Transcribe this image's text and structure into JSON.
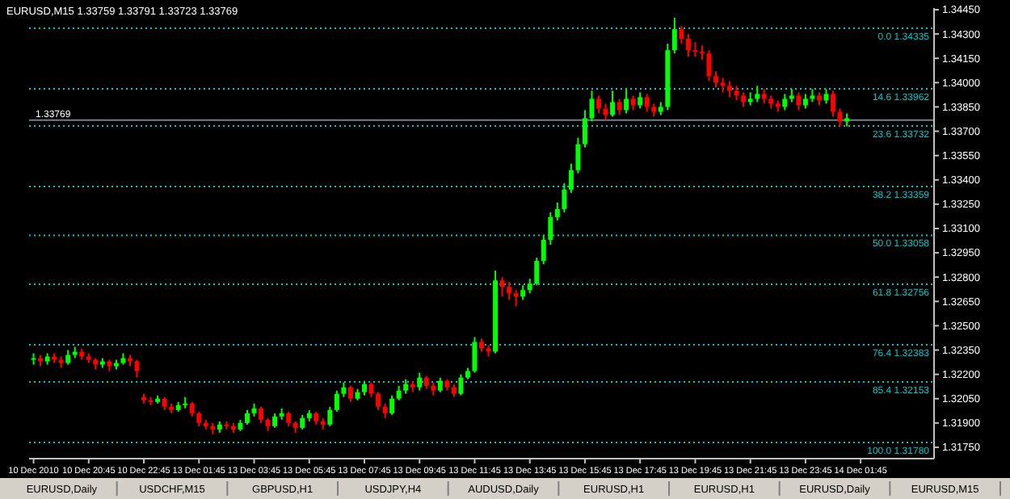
{
  "chart_data": {
    "type": "candlestick",
    "title": "EURUSD,M15  1.33759 1.33791 1.33723 1.33769",
    "categories": [
      "10 Dec 2010",
      null,
      null,
      null,
      null,
      null,
      null,
      null,
      "10 Dec 20:45",
      null,
      null,
      null,
      null,
      null,
      null,
      null,
      "10 Dec 22:45",
      null,
      null,
      null,
      null,
      null,
      null,
      null,
      "13 Dec 01:45",
      null,
      null,
      null,
      null,
      null,
      null,
      null,
      "13 Dec 03:45",
      null,
      null,
      null,
      null,
      null,
      null,
      null,
      "13 Dec 05:45",
      null,
      null,
      null,
      null,
      null,
      null,
      null,
      "13 Dec 07:45",
      null,
      null,
      null,
      null,
      null,
      null,
      null,
      "13 Dec 09:45",
      null,
      null,
      null,
      null,
      null,
      null,
      null,
      "13 Dec 11:45",
      null,
      null,
      null,
      null,
      null,
      null,
      null,
      "13 Dec 13:45",
      null,
      null,
      null,
      null,
      null,
      null,
      null,
      "13 Dec 15:45",
      null,
      null,
      null,
      null,
      null,
      null,
      null,
      "13 Dec 17:45",
      null,
      null,
      null,
      null,
      null,
      null,
      null,
      "13 Dec 19:45",
      null,
      null,
      null,
      null,
      null,
      null,
      null,
      "13 Dec 21:45",
      null,
      null,
      null,
      null,
      null,
      null,
      null,
      "13 Dec 23:45",
      null,
      null,
      null,
      null,
      null,
      null,
      null,
      "14 Dec 01:45",
      null,
      null,
      null,
      null,
      null,
      null,
      null,
      null,
      null,
      null
    ],
    "ohlc": [
      [
        1.3229,
        1.3233,
        1.3226,
        1.323
      ],
      [
        1.323,
        1.3232,
        1.3225,
        1.3228
      ],
      [
        1.3228,
        1.3233,
        1.3226,
        1.3231
      ],
      [
        1.3231,
        1.3233,
        1.3227,
        1.3229
      ],
      [
        1.3229,
        1.3231,
        1.3224,
        1.3227
      ],
      [
        1.3227,
        1.3235,
        1.3226,
        1.3232
      ],
      [
        1.3232,
        1.3237,
        1.323,
        1.3234
      ],
      [
        1.3234,
        1.3236,
        1.3229,
        1.3231
      ],
      [
        1.3231,
        1.3233,
        1.3227,
        1.3229
      ],
      [
        1.3229,
        1.323,
        1.3223,
        1.3226
      ],
      [
        1.3226,
        1.323,
        1.3224,
        1.3228
      ],
      [
        1.3228,
        1.3229,
        1.3222,
        1.3225
      ],
      [
        1.3225,
        1.3229,
        1.3223,
        1.3227
      ],
      [
        1.3227,
        1.3233,
        1.3226,
        1.323
      ],
      [
        1.323,
        1.3232,
        1.3225,
        1.3228
      ],
      [
        1.3228,
        1.3229,
        1.3218,
        1.3222
      ],
      [
        1.3206,
        1.3208,
        1.3202,
        1.3204
      ],
      [
        1.3204,
        1.3206,
        1.3201,
        1.3203
      ],
      [
        1.3203,
        1.3207,
        1.3202,
        1.3205
      ],
      [
        1.3205,
        1.3206,
        1.3198,
        1.32
      ],
      [
        1.32,
        1.3202,
        1.3196,
        1.3198
      ],
      [
        1.3198,
        1.3203,
        1.3197,
        1.3201
      ],
      [
        1.3201,
        1.3206,
        1.3199,
        1.3202
      ],
      [
        1.3202,
        1.3203,
        1.3194,
        1.3196
      ],
      [
        1.3196,
        1.3197,
        1.3188,
        1.319
      ],
      [
        1.319,
        1.3192,
        1.3186,
        1.3188
      ],
      [
        1.3188,
        1.319,
        1.3183,
        1.3186
      ],
      [
        1.3186,
        1.3191,
        1.3184,
        1.3189
      ],
      [
        1.3189,
        1.3191,
        1.3186,
        1.3188
      ],
      [
        1.3188,
        1.319,
        1.3184,
        1.3186
      ],
      [
        1.3186,
        1.3192,
        1.3185,
        1.319
      ],
      [
        1.319,
        1.3198,
        1.3189,
        1.3196
      ],
      [
        1.3196,
        1.3202,
        1.3194,
        1.3199
      ],
      [
        1.3199,
        1.32,
        1.319,
        1.3192
      ],
      [
        1.3192,
        1.3193,
        1.3185,
        1.3188
      ],
      [
        1.3188,
        1.3196,
        1.3187,
        1.3194
      ],
      [
        1.3194,
        1.3199,
        1.3192,
        1.3196
      ],
      [
        1.3196,
        1.3197,
        1.3188,
        1.319
      ],
      [
        1.319,
        1.3191,
        1.3184,
        1.3187
      ],
      [
        1.3187,
        1.3195,
        1.3186,
        1.3193
      ],
      [
        1.3193,
        1.3198,
        1.3191,
        1.3196
      ],
      [
        1.3196,
        1.3197,
        1.3189,
        1.3191
      ],
      [
        1.3191,
        1.3193,
        1.3186,
        1.3189
      ],
      [
        1.3189,
        1.32,
        1.3188,
        1.3198
      ],
      [
        1.3198,
        1.321,
        1.3197,
        1.3208
      ],
      [
        1.3208,
        1.3215,
        1.3206,
        1.3212
      ],
      [
        1.3212,
        1.3213,
        1.3203,
        1.3205
      ],
      [
        1.3205,
        1.3211,
        1.3204,
        1.3209
      ],
      [
        1.3209,
        1.3216,
        1.3207,
        1.3214
      ],
      [
        1.3214,
        1.3215,
        1.3206,
        1.3208
      ],
      [
        1.3208,
        1.3209,
        1.3198,
        1.32
      ],
      [
        1.32,
        1.3202,
        1.3193,
        1.3196
      ],
      [
        1.3196,
        1.3207,
        1.3195,
        1.3205
      ],
      [
        1.3205,
        1.3213,
        1.3204,
        1.321
      ],
      [
        1.321,
        1.3217,
        1.3208,
        1.3214
      ],
      [
        1.3214,
        1.3216,
        1.3209,
        1.3212
      ],
      [
        1.3212,
        1.3221,
        1.321,
        1.3218
      ],
      [
        1.3218,
        1.3219,
        1.3211,
        1.3213
      ],
      [
        1.3213,
        1.3215,
        1.3207,
        1.321
      ],
      [
        1.321,
        1.3218,
        1.3209,
        1.3216
      ],
      [
        1.3216,
        1.3217,
        1.321,
        1.3212
      ],
      [
        1.3212,
        1.3214,
        1.3206,
        1.3208
      ],
      [
        1.3208,
        1.322,
        1.3207,
        1.3218
      ],
      [
        1.3218,
        1.3224,
        1.3217,
        1.3222
      ],
      [
        1.3222,
        1.3243,
        1.3221,
        1.324
      ],
      [
        1.324,
        1.3242,
        1.3234,
        1.3236
      ],
      [
        1.3236,
        1.3238,
        1.3231,
        1.3234
      ],
      [
        1.3234,
        1.3284,
        1.3233,
        1.3278
      ],
      [
        1.3278,
        1.328,
        1.3268,
        1.3274
      ],
      [
        1.3274,
        1.3277,
        1.3266,
        1.327
      ],
      [
        1.327,
        1.3272,
        1.3262,
        1.3268
      ],
      [
        1.3268,
        1.3275,
        1.3266,
        1.3272
      ],
      [
        1.3272,
        1.3279,
        1.327,
        1.3276
      ],
      [
        1.3276,
        1.3292,
        1.3275,
        1.329
      ],
      [
        1.329,
        1.3306,
        1.3288,
        1.3303
      ],
      [
        1.3303,
        1.332,
        1.33,
        1.3317
      ],
      [
        1.3317,
        1.3326,
        1.3315,
        1.3322
      ],
      [
        1.3322,
        1.3338,
        1.332,
        1.3334
      ],
      [
        1.3334,
        1.335,
        1.3332,
        1.3346
      ],
      [
        1.3346,
        1.3366,
        1.3344,
        1.3362
      ],
      [
        1.3362,
        1.3383,
        1.336,
        1.3378
      ],
      [
        1.3378,
        1.3395,
        1.3376,
        1.339
      ],
      [
        1.339,
        1.3392,
        1.3381,
        1.3384
      ],
      [
        1.3384,
        1.3387,
        1.3377,
        1.338
      ],
      [
        1.338,
        1.3395,
        1.3379,
        1.3388
      ],
      [
        1.3388,
        1.339,
        1.338,
        1.3383
      ],
      [
        1.3383,
        1.3396,
        1.3381,
        1.339
      ],
      [
        1.339,
        1.3392,
        1.3383,
        1.3386
      ],
      [
        1.3386,
        1.3394,
        1.3384,
        1.3391
      ],
      [
        1.3391,
        1.3393,
        1.3382,
        1.3385
      ],
      [
        1.3385,
        1.3387,
        1.3379,
        1.3382
      ],
      [
        1.3382,
        1.3388,
        1.338,
        1.3385
      ],
      [
        1.3385,
        1.3424,
        1.3383,
        1.342
      ],
      [
        1.342,
        1.344,
        1.3418,
        1.3433
      ],
      [
        1.3433,
        1.3435,
        1.3424,
        1.3427
      ],
      [
        1.3427,
        1.343,
        1.3416,
        1.342
      ],
      [
        1.342,
        1.3425,
        1.3416,
        1.3419
      ],
      [
        1.3419,
        1.3423,
        1.3414,
        1.3418
      ],
      [
        1.3418,
        1.342,
        1.3401,
        1.3404
      ],
      [
        1.3404,
        1.3407,
        1.3397,
        1.34
      ],
      [
        1.34,
        1.3403,
        1.3394,
        1.3398
      ],
      [
        1.3398,
        1.3401,
        1.3391,
        1.3395
      ],
      [
        1.3395,
        1.3398,
        1.3389,
        1.3392
      ],
      [
        1.3392,
        1.3394,
        1.3385,
        1.3388
      ],
      [
        1.3388,
        1.3394,
        1.3386,
        1.339
      ],
      [
        1.339,
        1.3398,
        1.3388,
        1.3393
      ],
      [
        1.3393,
        1.3396,
        1.3387,
        1.339
      ],
      [
        1.339,
        1.3392,
        1.3384,
        1.3387
      ],
      [
        1.3387,
        1.3389,
        1.3382,
        1.3385
      ],
      [
        1.3385,
        1.3393,
        1.3383,
        1.339
      ],
      [
        1.339,
        1.3396,
        1.3388,
        1.3392
      ],
      [
        1.3392,
        1.3394,
        1.3383,
        1.3386
      ],
      [
        1.3386,
        1.3393,
        1.3384,
        1.339
      ],
      [
        1.339,
        1.3396,
        1.3388,
        1.3392
      ],
      [
        1.3392,
        1.3394,
        1.3386,
        1.3389
      ],
      [
        1.3389,
        1.3396,
        1.3387,
        1.3393
      ],
      [
        1.3393,
        1.3395,
        1.3379,
        1.3382
      ],
      [
        1.3382,
        1.3384,
        1.3373,
        1.3376
      ],
      [
        1.3376,
        1.3381,
        1.3373,
        1.3378
      ],
      null,
      null,
      null,
      null,
      null,
      null,
      null,
      null,
      null,
      null,
      null,
      null
    ],
    "ylim": [
      1.3168,
      1.3446
    ],
    "yticks": [
      {
        "value": 1.3445,
        "label": "1.34450"
      },
      {
        "value": 1.343,
        "label": "1.34300"
      },
      {
        "value": 1.3415,
        "label": "1.34150"
      },
      {
        "value": 1.34,
        "label": "1.34000"
      },
      {
        "value": 1.3385,
        "label": "1.33850"
      },
      {
        "value": 1.337,
        "label": "1.33700"
      },
      {
        "value": 1.3355,
        "label": "1.33550"
      },
      {
        "value": 1.334,
        "label": "1.33400"
      },
      {
        "value": 1.3325,
        "label": "1.33250"
      },
      {
        "value": 1.331,
        "label": "1.33100"
      },
      {
        "value": 1.3295,
        "label": "1.32950"
      },
      {
        "value": 1.328,
        "label": "1.32800"
      },
      {
        "value": 1.3265,
        "label": "1.32650"
      },
      {
        "value": 1.325,
        "label": "1.32500"
      },
      {
        "value": 1.3235,
        "label": "1.32350"
      },
      {
        "value": 1.322,
        "label": "1.32200"
      },
      {
        "value": 1.3205,
        "label": "1.32050"
      },
      {
        "value": 1.319,
        "label": "1.31900"
      },
      {
        "value": 1.3175,
        "label": "1.31750"
      }
    ],
    "ref_lines": [
      {
        "axis": "y",
        "value": 1.34335,
        "label": "0.0 1.34335",
        "color": "#00c8c8",
        "line_style": "dotted"
      },
      {
        "axis": "y",
        "value": 1.33962,
        "label": "14.6 1.33962",
        "color": "#00c8c8",
        "line_style": "dotted"
      },
      {
        "axis": "y",
        "value": 1.33732,
        "label": "23.6 1.33732",
        "color": "#00c8c8",
        "line_style": "dotted"
      },
      {
        "axis": "y",
        "value": 1.33359,
        "label": "38.2 1.33359",
        "color": "#00c8c8",
        "line_style": "dotted"
      },
      {
        "axis": "y",
        "value": 1.33058,
        "label": "50.0 1.33058",
        "color": "#00c8c8",
        "line_style": "dotted"
      },
      {
        "axis": "y",
        "value": 1.32756,
        "label": "61.8 1.32756",
        "color": "#00c8c8",
        "line_style": "dotted"
      },
      {
        "axis": "y",
        "value": 1.32383,
        "label": "76.4 1.32383",
        "color": "#00c8c8",
        "line_style": "dotted"
      },
      {
        "axis": "y",
        "value": 1.32153,
        "label": "85.4 1.32153",
        "color": "#00c8c8",
        "line_style": "dotted"
      },
      {
        "axis": "y",
        "value": 1.3178,
        "label": "100.0 1.31780",
        "color": "#00c8c8",
        "line_style": "dotted"
      },
      {
        "axis": "y",
        "value": 1.33769,
        "label": "1.33769",
        "color": "#708090",
        "line_style": "solid"
      }
    ],
    "annotations": [
      "EURUSD,Daily",
      "USDCHF,M15",
      "GBPUSD,H1",
      "USDJPY,H4",
      "AUDUSD,Daily",
      "EURUSD,H1",
      "EURUSD,H1",
      "EURUSD,Daily",
      "EURUSD,M15"
    ]
  }
}
